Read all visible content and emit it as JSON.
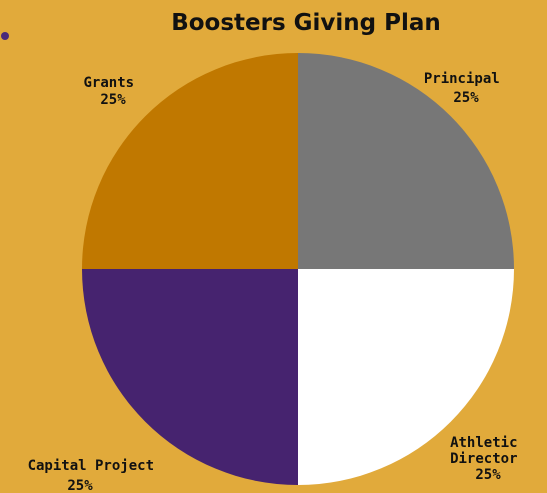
{
  "colors": {
    "background": "#E1AA3B",
    "dot": "#4B2A7A"
  },
  "chart_data": {
    "type": "pie",
    "title": "Boosters Giving Plan",
    "slices": [
      {
        "label": "Principal",
        "value": 25,
        "pct_label": "25%",
        "color": "#777777"
      },
      {
        "label": "Athletic Director",
        "value": 25,
        "pct_label": "25%",
        "color": "#FFFFFF"
      },
      {
        "label": "Capital Project",
        "value": 25,
        "pct_label": "25%",
        "color": "#46236F"
      },
      {
        "label": "Grants",
        "value": 25,
        "pct_label": "25%",
        "color": "#C07800"
      }
    ]
  }
}
